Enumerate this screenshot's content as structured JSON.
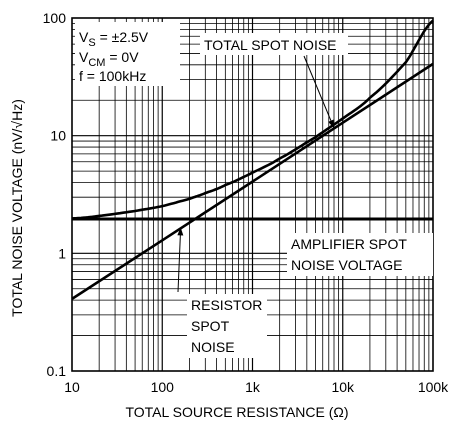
{
  "chart_data": {
    "type": "line",
    "xscale": "log",
    "yscale": "log",
    "xlim": [
      10,
      100000
    ],
    "ylim": [
      0.1,
      100
    ],
    "grid": true,
    "xlabel": "TOTAL SOURCE RESISTANCE (Ω)",
    "ylabel": "TOTAL NOISE VOLTAGE (nV/√Hz)",
    "x_ticks": [
      {
        "value": 10,
        "label": "10"
      },
      {
        "value": 100,
        "label": "100"
      },
      {
        "value": 1000,
        "label": "1k"
      },
      {
        "value": 10000,
        "label": "10k"
      },
      {
        "value": 100000,
        "label": "100k"
      }
    ],
    "y_ticks": [
      {
        "value": 0.1,
        "label": "0.1"
      },
      {
        "value": 1,
        "label": "1"
      },
      {
        "value": 10,
        "label": "10"
      },
      {
        "value": 100,
        "label": "100"
      }
    ],
    "conditions": [
      {
        "main": "V",
        "sub": "S",
        "rest": " = ±2.5V"
      },
      {
        "main": "V",
        "sub": "CM",
        "rest": " = 0V"
      },
      {
        "main": "f = 100kHz",
        "sub": "",
        "rest": ""
      }
    ],
    "series": [
      {
        "name": "TOTAL SPOT NOISE",
        "x": [
          10,
          20,
          50,
          100,
          200,
          300,
          500,
          1000,
          2000,
          5000,
          10000,
          20000,
          50000,
          100000
        ],
        "y": [
          1.98,
          2.08,
          2.29,
          2.52,
          2.9,
          3.25,
          3.8,
          4.85,
          6.4,
          9.7,
          14.0,
          21.0,
          42.0,
          95.0
        ]
      },
      {
        "name": "AMPLIFIER SPOT NOISE VOLTAGE",
        "x": [
          10,
          100000
        ],
        "y": [
          1.95,
          1.95
        ]
      },
      {
        "name": "RESISTOR SPOT NOISE",
        "x": [
          10,
          100,
          1000,
          10000,
          100000
        ],
        "y": [
          0.41,
          1.29,
          4.07,
          12.9,
          40.7
        ]
      }
    ],
    "annotations": [
      {
        "lines": [
          "TOTAL SPOT NOISE"
        ],
        "series": 0
      },
      {
        "lines": [
          "AMPLIFIER SPOT",
          "NOISE VOLTAGE"
        ],
        "series": 1
      },
      {
        "lines": [
          "RESISTOR",
          "SPOT",
          "NOISE"
        ],
        "series": 2
      }
    ]
  }
}
